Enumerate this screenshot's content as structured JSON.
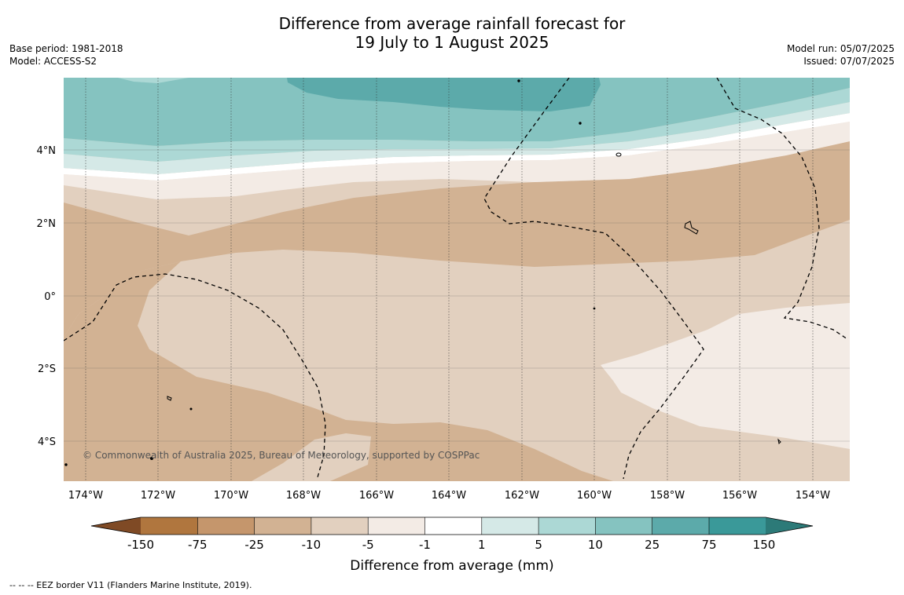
{
  "title": {
    "line1": "Difference from average rainfall forecast for",
    "line2": "19 July to 1 August 2025"
  },
  "meta": {
    "base_period": "Base period: 1981-2018",
    "model": "Model: ACCESS-S2",
    "model_run": "Model run: 05/07/2025",
    "issued": "Issued: 07/07/2025"
  },
  "map": {
    "lon_labels": [
      "174°W",
      "172°W",
      "170°W",
      "168°W",
      "166°W",
      "164°W",
      "162°W",
      "160°W",
      "158°W",
      "156°W",
      "154°W"
    ],
    "lat_labels": [
      "4°N",
      "2°N",
      "0°",
      "2°S",
      "4°S"
    ],
    "copyright": "© Commonwealth of Australia 2025, Bureau of Meteorology, supported by COSPPac",
    "colors": {
      "dry_mod": "#d2b293",
      "dry_light": "#e2d0bf",
      "dry_slight": "#f3ebe5",
      "neutral": "#ffffff",
      "wet_slight": "#d5e9e7",
      "wet_light": "#acd8d5",
      "wet_mod": "#85c3c0",
      "wet_high": "#5caaaa"
    }
  },
  "colorbar": {
    "ticks": [
      "-150",
      "-75",
      "-25",
      "-10",
      "-5",
      "-1",
      "1",
      "5",
      "10",
      "25",
      "75",
      "150"
    ],
    "colors": [
      "#7f4a25",
      "#b0763e",
      "#c5966c",
      "#d2b293",
      "#e2d0bf",
      "#f3ebe5",
      "#ffffff",
      "#d5e9e7",
      "#acd8d5",
      "#85c3c0",
      "#5caaaa",
      "#3a9999",
      "#2c7a78"
    ],
    "label": "Difference from average (mm)"
  },
  "footnote": "--  --  -- EEZ border V11 (Flanders Marine Institute, 2019)."
}
